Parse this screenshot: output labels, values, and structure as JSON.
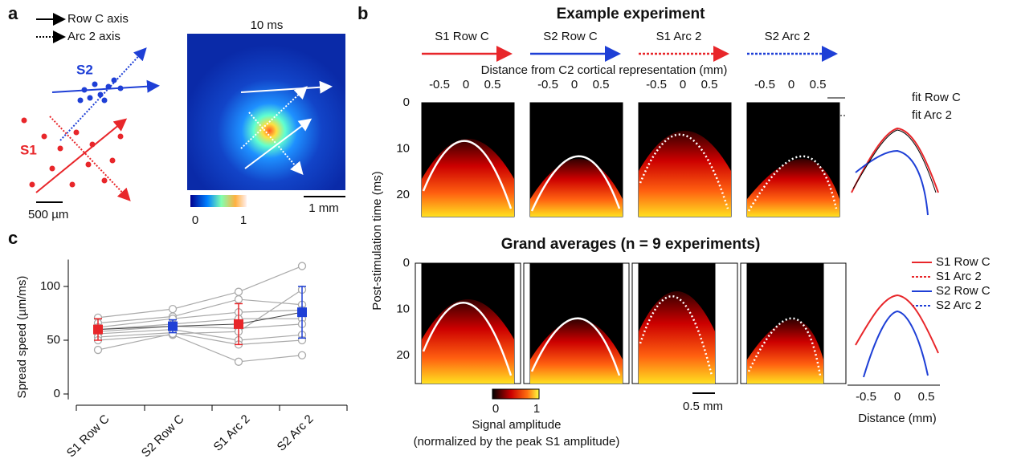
{
  "panel_a": {
    "label": "a",
    "legend": [
      "Row C axis",
      "Arc 2 axis"
    ],
    "s2": "S2",
    "s1": "S1",
    "scale": "500 µm",
    "time": "10 ms",
    "colorbar_ticks": [
      0,
      1
    ],
    "image_scale": "1 mm"
  },
  "panel_b": {
    "label": "b",
    "title_top": "Example experiment",
    "conditions": [
      "S1 Row C",
      "S2 Row C",
      "S1 Arc 2",
      "S2 Arc 2"
    ],
    "xlabel": "Distance from C2 cortical representation (mm)",
    "ylabel": "Post-stimulation time (ms)",
    "xticks": [
      -0.5,
      0,
      0.5
    ],
    "yticks": [
      0,
      10,
      20
    ],
    "fit_legend": [
      "fit Row C",
      "fit Arc 2"
    ],
    "title_bottom": "Grand averages (n = 9 experiments)",
    "profile_legend": [
      "S1 Row C",
      "S1 Arc 2",
      "S2 Row C",
      "S2 Arc 2"
    ],
    "colorbar_ticks": [
      0,
      1
    ],
    "colorbar_label": "Signal amplitude",
    "colorbar_note": "(normalized by the peak S1 amplitude)",
    "scale": "0.5 mm",
    "profile_xlabel": "Distance (mm)"
  },
  "chart_data": {
    "type": "speed",
    "label": "c",
    "ylabel": "Spread speed (µm/ms)",
    "categories": [
      "S1 Row C",
      "S2 Row C",
      "S1 Arc 2",
      "S2 Arc 2"
    ],
    "ylim": [
      -5,
      125
    ],
    "yticks": [
      0,
      50,
      100
    ],
    "means": [
      60,
      63,
      65,
      76
    ],
    "errors": [
      10,
      6,
      19,
      24
    ],
    "colors": [
      "#e8262a",
      "#1e3fd6",
      "#e8262a",
      "#1e3fd6"
    ],
    "experiment_color": "#aaaaaa",
    "experiments": [
      [
        71,
        79,
        95,
        119
      ],
      [
        66,
        72,
        88,
        83
      ],
      [
        62,
        70,
        76,
        78
      ],
      [
        60,
        65,
        70,
        70
      ],
      [
        58,
        63,
        61,
        65
      ],
      [
        56,
        60,
        50,
        55
      ],
      [
        53,
        57,
        46,
        50
      ],
      [
        50,
        55,
        30,
        36
      ],
      [
        41,
        56,
        58,
        97
      ]
    ]
  }
}
